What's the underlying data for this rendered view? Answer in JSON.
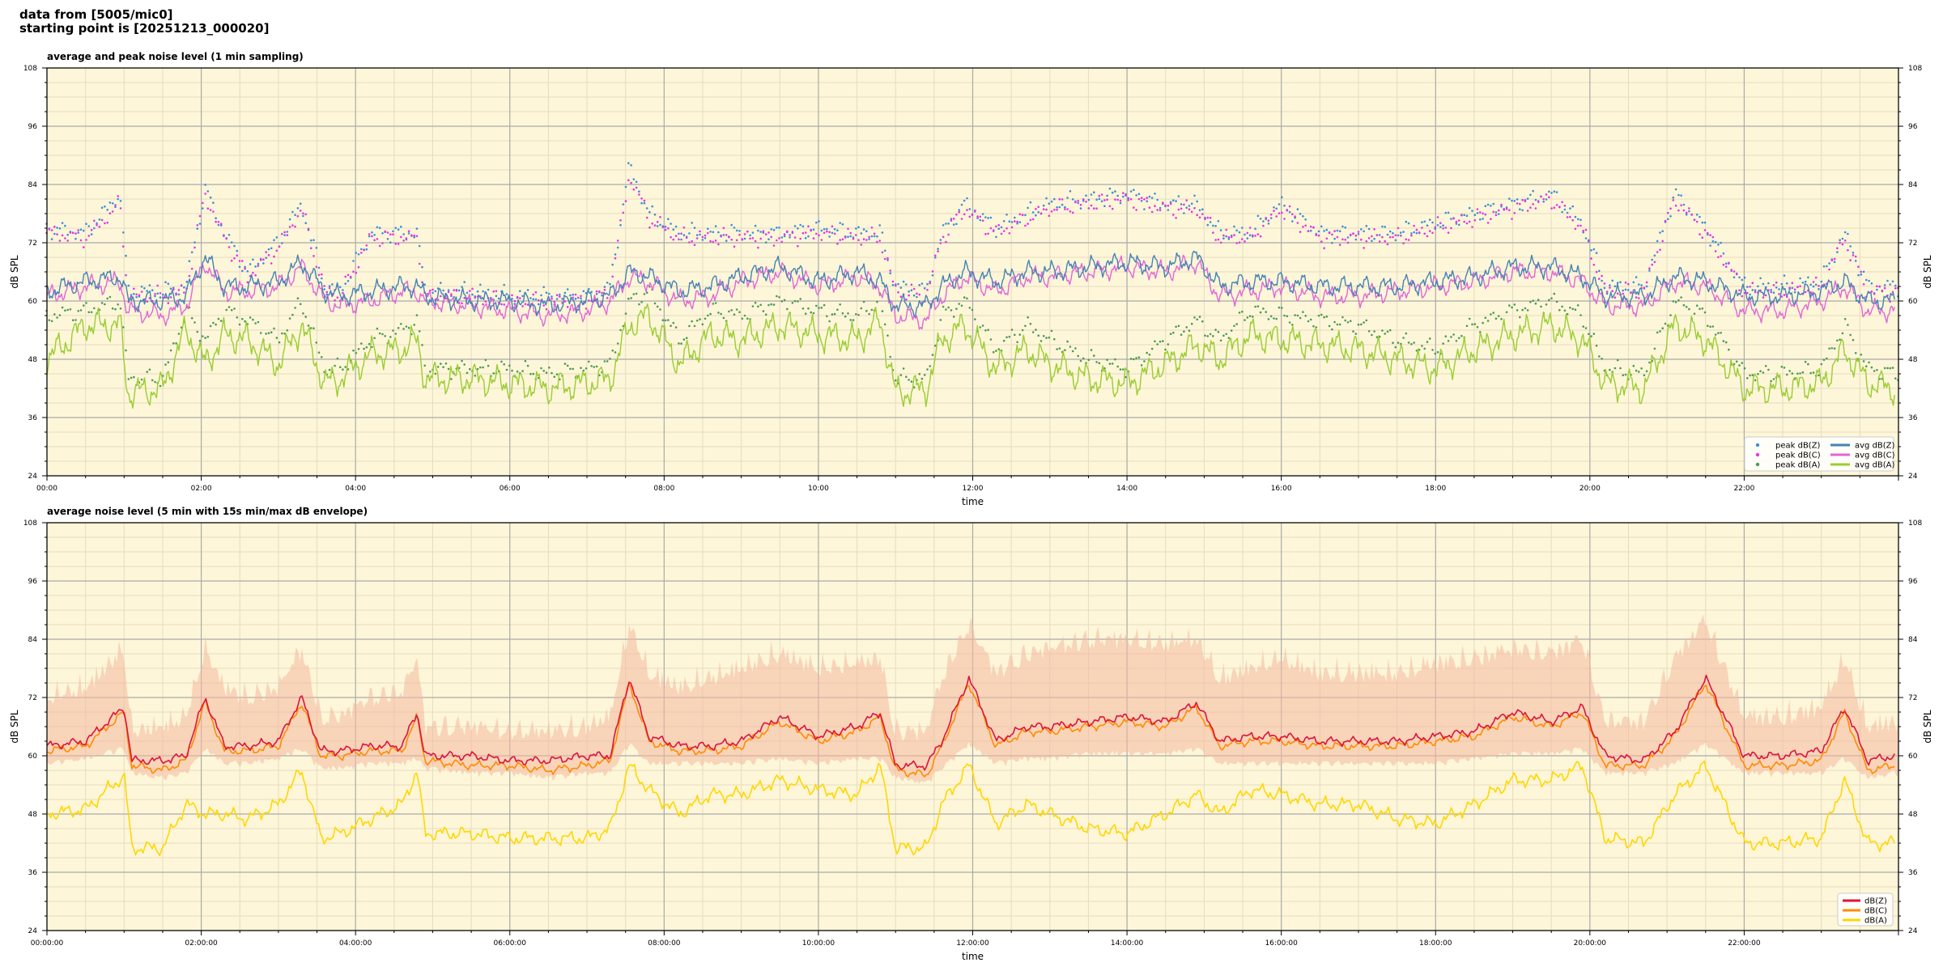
{
  "header": {
    "line1": "data from [5005/mic0]",
    "line2": "starting point is [20251213_000020]"
  },
  "colors": {
    "plot_bg": "#fdf6d8",
    "grid_major": "#aaaaaa",
    "grid_minor": "#e6dcc0",
    "peak_z": "#3b8fd8",
    "peak_c": "#e633e6",
    "peak_a": "#4b9a55",
    "avg_z": "#4682b4",
    "avg_c": "#e066d8",
    "avg_a": "#9acd32",
    "env": "#f4b8a0",
    "dbz": "#dc143c",
    "dbc": "#ff8c00",
    "dba": "#ffd700"
  },
  "chart_data": [
    {
      "type": "line",
      "title": "average and peak noise level (1 min sampling)",
      "xlabel": "time",
      "ylabel": "dB SPL",
      "xlim": [
        0,
        24
      ],
      "ylim": [
        24,
        108
      ],
      "grid": true,
      "legend_placement": "lower-right",
      "x_tick_labels": [
        "00:00",
        "02:00",
        "04:00",
        "06:00",
        "08:00",
        "10:00",
        "12:00",
        "14:00",
        "16:00",
        "18:00",
        "20:00",
        "22:00"
      ],
      "y_tick_labels": [
        "108",
        "96",
        "84",
        "72",
        "60",
        "48",
        "36",
        "24"
      ],
      "legend": [
        {
          "label": "peak dB(Z)",
          "kind": "dot",
          "color": "#3b8fd8"
        },
        {
          "label": "peak dB(C)",
          "kind": "dot",
          "color": "#e633e6"
        },
        {
          "label": "peak dB(A)",
          "kind": "dot",
          "color": "#4b9a55"
        },
        {
          "label": "avg dB(Z)",
          "kind": "line",
          "color": "#4682b4"
        },
        {
          "label": "avg dB(C)",
          "kind": "line",
          "color": "#e066d8"
        },
        {
          "label": "avg dB(A)",
          "kind": "line",
          "color": "#9acd32"
        }
      ],
      "x_hours": [
        0,
        0.5,
        0.95,
        1.05,
        1.5,
        1.8,
        2.05,
        2.3,
        2.6,
        3.0,
        3.3,
        3.6,
        3.8,
        4.2,
        4.6,
        4.8,
        4.9,
        5.5,
        6.0,
        6.5,
        7.0,
        7.3,
        7.55,
        7.8,
        8.2,
        8.6,
        9.0,
        9.5,
        10.0,
        10.5,
        10.8,
        11.0,
        11.4,
        11.6,
        11.9,
        12.3,
        12.7,
        13.0,
        13.5,
        14.0,
        14.5,
        14.9,
        15.2,
        15.6,
        16.0,
        16.5,
        17.0,
        17.5,
        18.0,
        18.5,
        19.0,
        19.5,
        19.9,
        20.2,
        20.7,
        21.1,
        21.5,
        22.0,
        22.5,
        23.0,
        23.3,
        23.6,
        23.95
      ],
      "series": [
        {
          "name": "avg dB(Z)",
          "values": [
            62,
            64,
            65,
            60,
            60,
            61,
            69,
            63,
            63,
            64,
            68,
            62,
            61,
            62,
            63,
            63,
            61,
            60,
            60,
            59,
            60,
            61,
            66,
            65,
            62,
            63,
            65,
            67,
            64,
            66,
            64,
            59,
            59,
            63,
            66,
            64,
            66,
            66,
            67,
            68,
            67,
            69,
            63,
            64,
            64,
            63,
            63,
            63,
            64,
            65,
            67,
            67,
            65,
            61,
            61,
            65,
            64,
            61,
            61,
            62,
            64,
            60,
            60
          ]
        },
        {
          "name": "avg dB(C)",
          "values": [
            61,
            63,
            64,
            58,
            57,
            59,
            68,
            62,
            62,
            63,
            67,
            60,
            59,
            60,
            62,
            62,
            60,
            59,
            58,
            57,
            58,
            60,
            65,
            64,
            60,
            61,
            64,
            66,
            63,
            65,
            63,
            57,
            56,
            61,
            65,
            62,
            65,
            65,
            66,
            67,
            66,
            68,
            61,
            62,
            63,
            61,
            61,
            62,
            63,
            64,
            66,
            66,
            64,
            59,
            59,
            64,
            63,
            58,
            58,
            60,
            63,
            58,
            58
          ]
        },
        {
          "name": "avg dB(A)",
          "values": [
            48,
            55,
            55,
            41,
            42,
            54,
            47,
            53,
            52,
            47,
            55,
            43,
            44,
            49,
            50,
            52,
            44,
            44,
            43,
            42,
            43,
            44,
            55,
            57,
            47,
            53,
            52,
            55,
            53,
            52,
            56,
            41,
            42,
            52,
            55,
            46,
            50,
            47,
            44,
            43,
            47,
            51,
            48,
            53,
            52,
            51,
            50,
            48,
            46,
            50,
            53,
            55,
            52,
            43,
            42,
            55,
            52,
            42,
            42,
            43,
            50,
            43,
            42
          ]
        },
        {
          "name": "peak dB(Z)",
          "values": [
            75,
            74,
            82,
            62,
            62,
            63,
            83,
            74,
            66,
            72,
            80,
            63,
            62,
            74,
            74,
            74,
            62,
            62,
            61,
            61,
            61,
            63,
            88,
            78,
            74,
            74,
            74,
            74,
            75,
            74,
            74,
            63,
            62,
            74,
            80,
            75,
            78,
            80,
            81,
            82,
            80,
            80,
            74,
            74,
            80,
            74,
            74,
            74,
            76,
            78,
            80,
            82,
            76,
            63,
            63,
            82,
            75,
            63,
            63,
            64,
            74,
            63,
            63
          ]
        },
        {
          "name": "peak dB(C)",
          "values": [
            74,
            73,
            80,
            61,
            61,
            62,
            82,
            73,
            65,
            71,
            79,
            62,
            61,
            73,
            73,
            73,
            61,
            61,
            60,
            60,
            60,
            62,
            86,
            77,
            73,
            73,
            73,
            73,
            74,
            73,
            73,
            62,
            61,
            73,
            79,
            74,
            77,
            79,
            80,
            81,
            79,
            79,
            73,
            73,
            79,
            73,
            73,
            73,
            75,
            77,
            79,
            81,
            75,
            62,
            62,
            81,
            74,
            62,
            62,
            63,
            73,
            62,
            62
          ]
        },
        {
          "name": "peak dB(A)",
          "values": [
            57,
            58,
            60,
            44,
            44,
            58,
            52,
            58,
            56,
            52,
            60,
            46,
            46,
            52,
            54,
            56,
            46,
            46,
            46,
            45,
            46,
            47,
            60,
            62,
            52,
            58,
            57,
            60,
            58,
            57,
            60,
            44,
            44,
            57,
            60,
            50,
            55,
            52,
            48,
            46,
            52,
            56,
            52,
            58,
            57,
            56,
            55,
            52,
            50,
            55,
            58,
            60,
            57,
            46,
            45,
            60,
            57,
            45,
            45,
            46,
            55,
            46,
            45
          ]
        }
      ]
    },
    {
      "type": "line",
      "title": "average noise level (5 min with 15s min/max dB envelope)",
      "xlabel": "time",
      "ylabel": "dB SPL",
      "xlim": [
        0,
        24
      ],
      "ylim": [
        24,
        108
      ],
      "grid": true,
      "legend_placement": "lower-right",
      "x_tick_labels": [
        "00:00:00",
        "02:00:00",
        "04:00:00",
        "06:00:00",
        "08:00:00",
        "10:00:00",
        "12:00:00",
        "14:00:00",
        "16:00:00",
        "18:00:00",
        "20:00:00",
        "22:00:00"
      ],
      "y_tick_labels": [
        "108",
        "96",
        "84",
        "72",
        "60",
        "48",
        "36",
        "24"
      ],
      "legend": [
        {
          "label": "dB(Z)",
          "kind": "line",
          "color": "#dc143c"
        },
        {
          "label": "dB(C)",
          "kind": "line",
          "color": "#ff8c00"
        },
        {
          "label": "dB(A)",
          "kind": "line",
          "color": "#ffd700"
        }
      ],
      "x_hours": [
        0,
        0.5,
        1.0,
        1.1,
        1.5,
        1.8,
        2.05,
        2.3,
        2.6,
        3.0,
        3.3,
        3.55,
        3.8,
        4.2,
        4.6,
        4.8,
        4.9,
        5.5,
        6.0,
        6.5,
        7.0,
        7.3,
        7.55,
        7.8,
        8.2,
        8.6,
        9.0,
        9.5,
        10.0,
        10.5,
        10.8,
        11.0,
        11.4,
        11.6,
        11.95,
        12.3,
        12.7,
        13.0,
        13.5,
        14.0,
        14.5,
        14.9,
        15.2,
        15.6,
        16.0,
        16.5,
        17.0,
        17.5,
        18.0,
        18.5,
        19.0,
        19.5,
        19.9,
        20.2,
        20.7,
        21.1,
        21.5,
        22.0,
        22.5,
        23.0,
        23.3,
        23.6,
        23.95
      ],
      "series": [
        {
          "name": "dB(Z)",
          "values": [
            62,
            63,
            70,
            59,
            59,
            60,
            72,
            62,
            62,
            63,
            72,
            61,
            61,
            62,
            62,
            69,
            60,
            60,
            59,
            59,
            60,
            60,
            76,
            64,
            62,
            62,
            63,
            68,
            64,
            66,
            69,
            58,
            58,
            63,
            76,
            63,
            66,
            66,
            67,
            68,
            67,
            71,
            63,
            64,
            64,
            63,
            63,
            63,
            64,
            65,
            69,
            67,
            70,
            60,
            59,
            65,
            76,
            60,
            60,
            61,
            70,
            59,
            60
          ]
        },
        {
          "name": "dB(C)",
          "values": [
            61,
            62,
            69,
            58,
            57,
            59,
            71,
            61,
            61,
            62,
            71,
            60,
            60,
            61,
            61,
            68,
            59,
            58,
            58,
            57,
            58,
            59,
            75,
            63,
            61,
            61,
            62,
            67,
            63,
            65,
            68,
            57,
            56,
            62,
            75,
            62,
            65,
            65,
            66,
            67,
            66,
            70,
            62,
            63,
            63,
            62,
            62,
            62,
            63,
            64,
            68,
            66,
            69,
            58,
            58,
            64,
            75,
            58,
            58,
            59,
            69,
            57,
            58
          ]
        },
        {
          "name": "dB(A)",
          "values": [
            48,
            49,
            56,
            41,
            41,
            50,
            48,
            48,
            47,
            50,
            57,
            43,
            44,
            47,
            50,
            57,
            44,
            44,
            43,
            43,
            43,
            45,
            58,
            53,
            48,
            52,
            52,
            55,
            53,
            52,
            58,
            41,
            41,
            50,
            58,
            46,
            50,
            48,
            45,
            44,
            48,
            52,
            48,
            53,
            52,
            50,
            50,
            47,
            46,
            50,
            55,
            55,
            58,
            43,
            42,
            52,
            58,
            42,
            42,
            43,
            55,
            42,
            42
          ]
        },
        {
          "name": "envelope max",
          "values": [
            70,
            72,
            80,
            63,
            64,
            66,
            80,
            72,
            70,
            72,
            80,
            66,
            66,
            70,
            71,
            78,
            64,
            64,
            63,
            63,
            64,
            66,
            85,
            75,
            72,
            74,
            76,
            79,
            76,
            77,
            78,
            63,
            63,
            74,
            85,
            75,
            79,
            80,
            82,
            82,
            81,
            82,
            74,
            76,
            78,
            75,
            75,
            75,
            77,
            78,
            80,
            79,
            82,
            65,
            65,
            78,
            86,
            66,
            66,
            68,
            78,
            64,
            65
          ]
        },
        {
          "name": "envelope min",
          "values": [
            59,
            60,
            62,
            57,
            56,
            57,
            62,
            59,
            59,
            60,
            62,
            58,
            58,
            59,
            59,
            60,
            58,
            57,
            57,
            56,
            57,
            57,
            63,
            59,
            59,
            59,
            59,
            60,
            59,
            60,
            60,
            56,
            55,
            58,
            63,
            59,
            60,
            60,
            61,
            61,
            61,
            62,
            59,
            59,
            59,
            59,
            59,
            59,
            59,
            60,
            61,
            61,
            62,
            57,
            57,
            59,
            63,
            57,
            57,
            57,
            60,
            56,
            57
          ]
        }
      ]
    }
  ]
}
